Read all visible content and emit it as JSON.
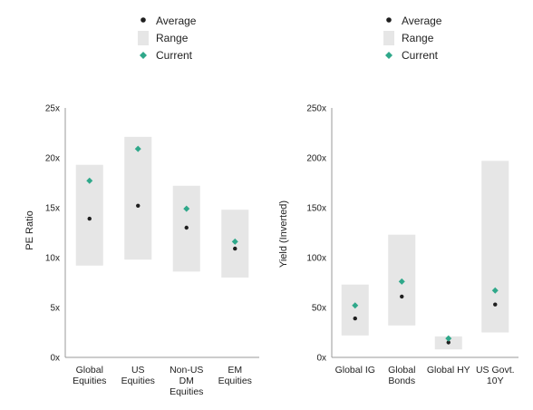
{
  "colors": {
    "average": "#1f1f1f",
    "range": "#e6e6e6",
    "current": "#2fa88a",
    "axis": "#9a9a9a",
    "text": "#222222"
  },
  "chart_data": [
    {
      "type": "range-dot",
      "ylabel": "PE Ratio",
      "ylim": [
        0,
        25
      ],
      "yticks": [
        0,
        5,
        10,
        15,
        20,
        25
      ],
      "tick_suffix": "x",
      "legend": {
        "average": "Average",
        "range": "Range",
        "current": "Current"
      },
      "categories": [
        {
          "label": [
            "Global",
            "Equities"
          ],
          "range": [
            9.2,
            19.3
          ],
          "average": 13.9,
          "current": 17.7
        },
        {
          "label": [
            "US",
            "Equities"
          ],
          "range": [
            9.8,
            22.1
          ],
          "average": 15.2,
          "current": 20.9
        },
        {
          "label": [
            "Non-US",
            "DM",
            "Equities"
          ],
          "range": [
            8.6,
            17.2
          ],
          "average": 13.0,
          "current": 14.9
        },
        {
          "label": [
            "EM",
            "Equities"
          ],
          "range": [
            8.0,
            14.8
          ],
          "average": 10.9,
          "current": 11.6
        }
      ]
    },
    {
      "type": "range-dot",
      "ylabel": "Yield (Inverted)",
      "ylim": [
        0,
        250
      ],
      "yticks": [
        0,
        50,
        100,
        150,
        200,
        250
      ],
      "tick_suffix": "x",
      "legend": {
        "average": "Average",
        "range": "Range",
        "current": "Current"
      },
      "categories": [
        {
          "label": [
            "Global IG"
          ],
          "range": [
            22,
            73
          ],
          "average": 39,
          "current": 52
        },
        {
          "label": [
            "Global",
            "Bonds"
          ],
          "range": [
            32,
            123
          ],
          "average": 61,
          "current": 76
        },
        {
          "label": [
            "Global HY"
          ],
          "range": [
            8,
            21
          ],
          "average": 15,
          "current": 19
        },
        {
          "label": [
            "US Govt.",
            "10Y"
          ],
          "range": [
            25,
            197
          ],
          "average": 53,
          "current": 67
        }
      ]
    }
  ]
}
